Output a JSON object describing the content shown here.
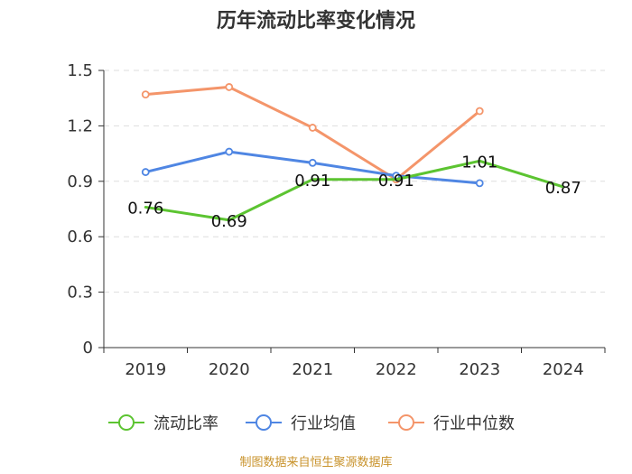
{
  "chart_data": {
    "type": "line",
    "title": "历年流动比率变化情况",
    "categories": [
      "2019",
      "2020",
      "2021",
      "2022",
      "2023",
      "2024"
    ],
    "y_ticks": [
      "0",
      "0.3",
      "0.6",
      "0.9",
      "1.2",
      "1.5"
    ],
    "ylim": [
      0,
      1.5
    ],
    "grid": true,
    "legend_position": "bottom",
    "series": [
      {
        "name": "流动比率",
        "color": "#5cc431",
        "values": [
          0.76,
          0.69,
          0.91,
          0.91,
          1.01,
          0.87
        ],
        "labels": [
          "0.76",
          "0.69",
          "0.91",
          "0.91",
          "1.01",
          "0.87"
        ],
        "markers": false
      },
      {
        "name": "行业均值",
        "color": "#4f86e3",
        "values": [
          0.95,
          1.06,
          1.0,
          0.93,
          0.89,
          null
        ],
        "markers": true
      },
      {
        "name": "行业中位数",
        "color": "#f4956a",
        "values": [
          1.37,
          1.41,
          1.19,
          0.91,
          1.28,
          null
        ],
        "markers": true
      }
    ]
  },
  "source": "制图数据来自恒生聚源数据库"
}
